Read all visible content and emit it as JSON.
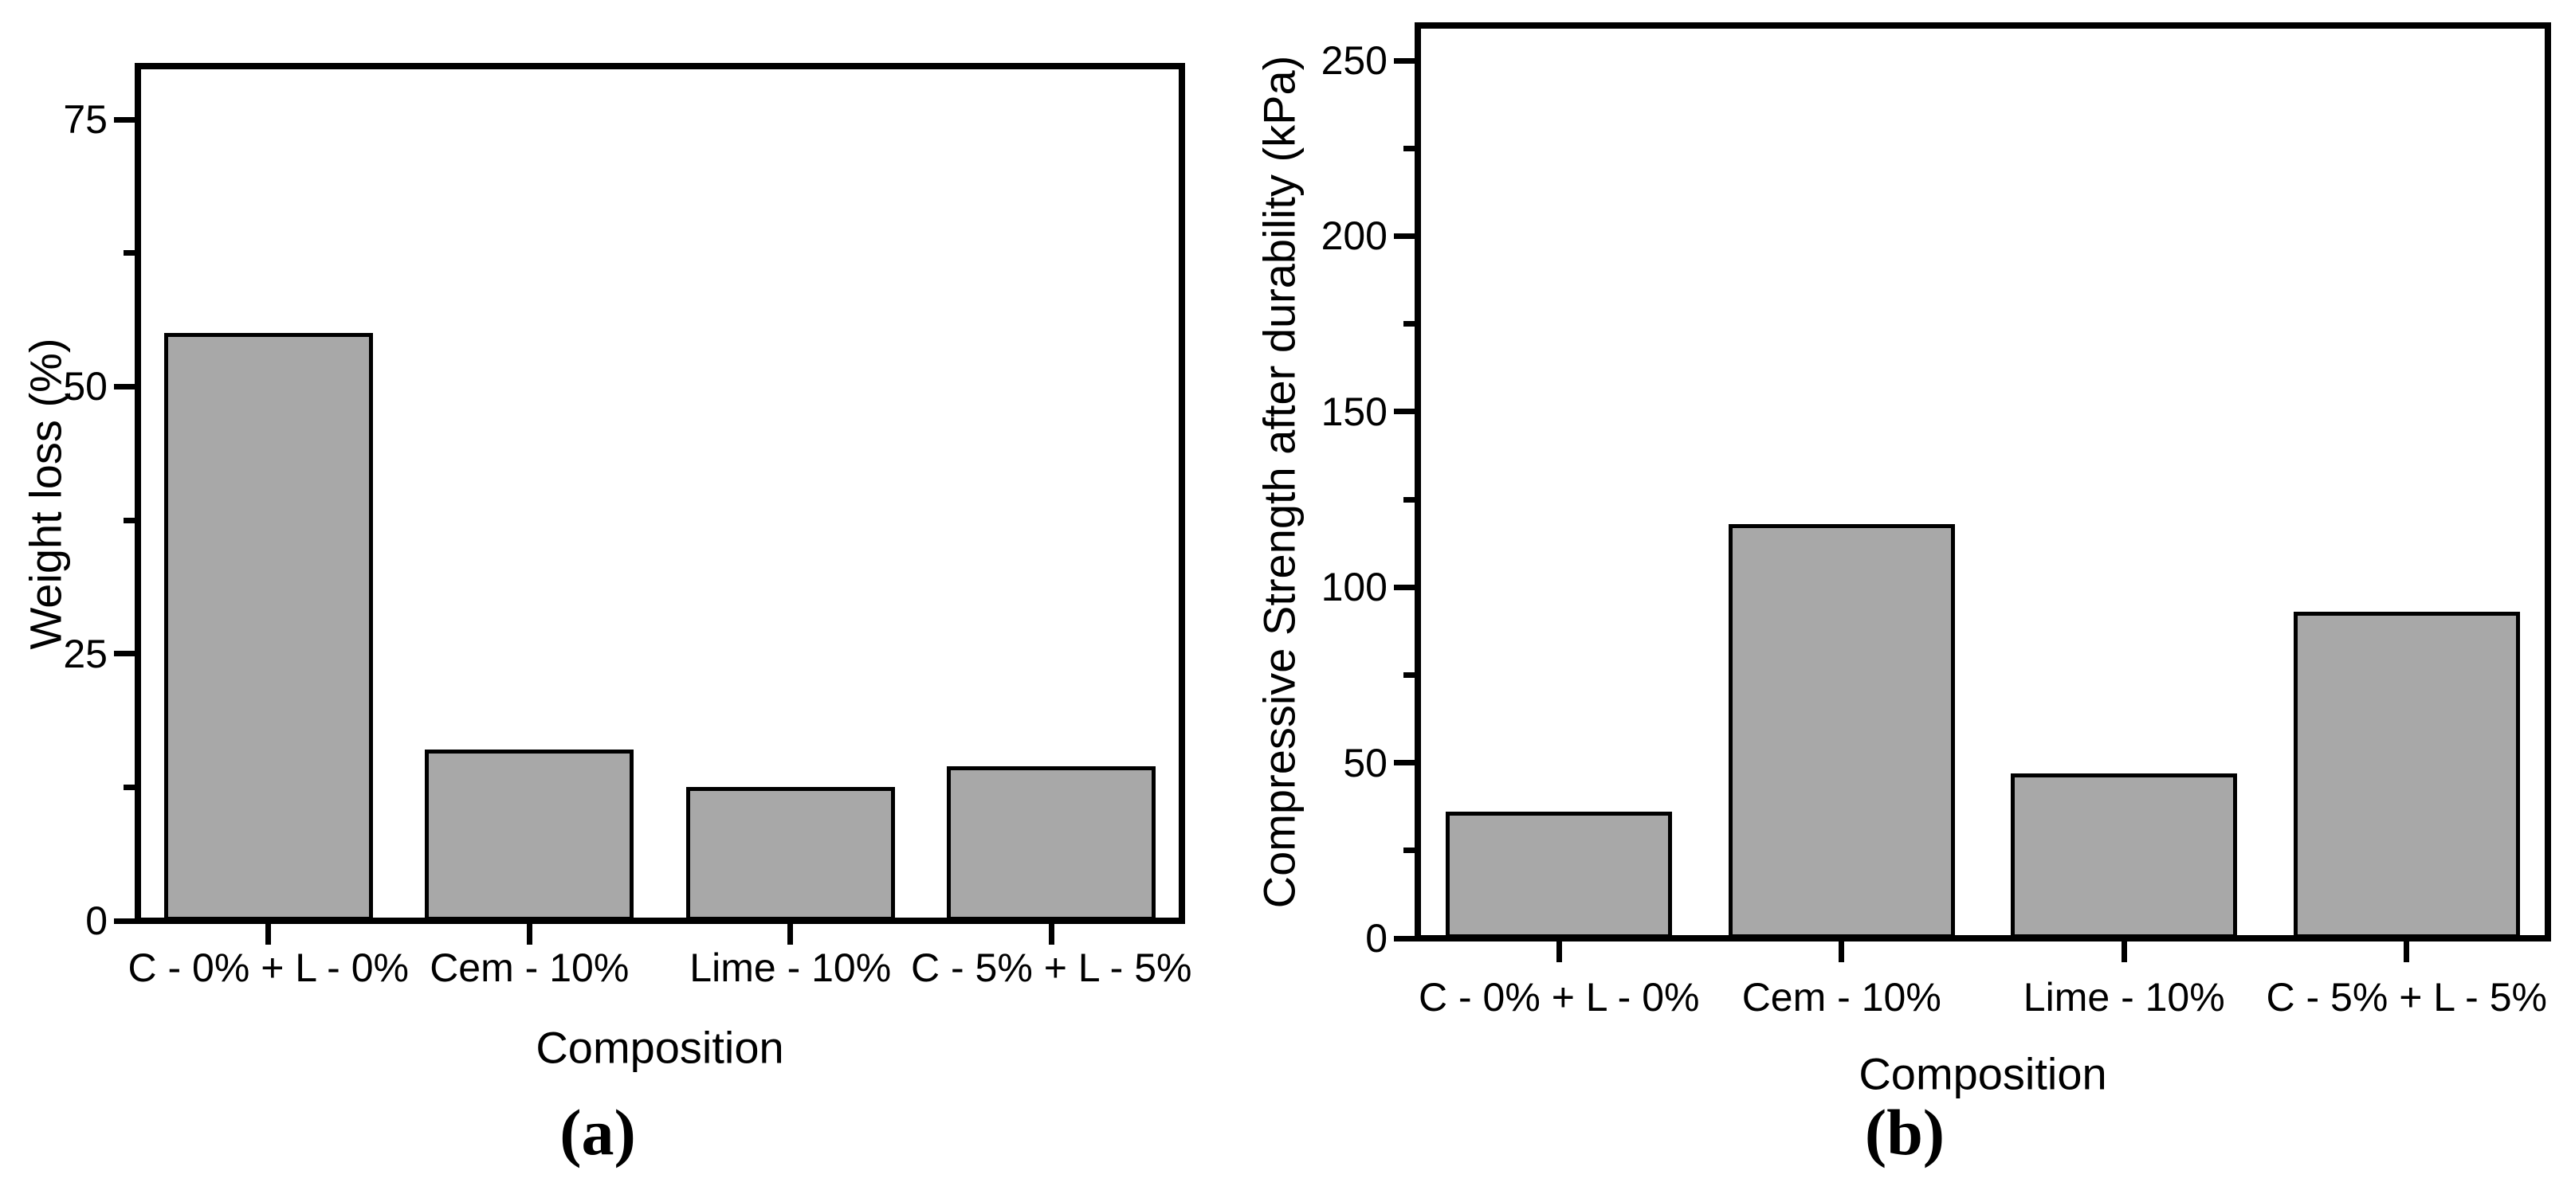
{
  "background": "#ffffff",
  "chart_data": [
    {
      "id": "a",
      "type": "bar",
      "panel_caption": "(a)",
      "xlabel": "Composition",
      "ylabel": "Weight loss (%)",
      "categories": [
        "C - 0% + L - 0%",
        "Cem - 10%",
        "Lime - 10%",
        "C - 5% + L - 5%"
      ],
      "values": [
        55,
        16,
        12.5,
        14.5
      ],
      "ylim": [
        0,
        80
      ],
      "yticks": [
        0,
        25,
        50,
        75
      ],
      "minor_tick_step": 12.5,
      "bar_fill": "#a8a8a8",
      "bar_edge": "#000000",
      "grid": false,
      "legend": null
    },
    {
      "id": "b",
      "type": "bar",
      "panel_caption": "(b)",
      "xlabel": "Composition",
      "ylabel": "Compressive Strength after durability (kPa)",
      "categories": [
        "C - 0% + L - 0%",
        "Cem - 10%",
        "Lime - 10%",
        "C - 5% + L - 5%"
      ],
      "values": [
        36,
        118,
        47,
        93
      ],
      "ylim": [
        0,
        260
      ],
      "yticks": [
        0,
        50,
        100,
        150,
        200,
        250
      ],
      "minor_tick_step": 25,
      "bar_fill": "#a8a8a8",
      "bar_edge": "#000000",
      "grid": false,
      "legend": null
    }
  ]
}
